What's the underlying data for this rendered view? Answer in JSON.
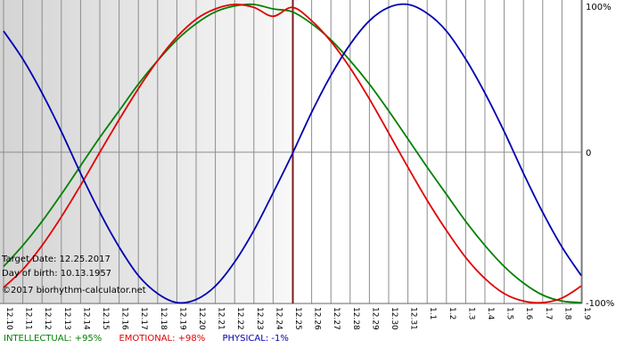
{
  "chart_data": {
    "type": "line",
    "x": [
      "12.10",
      "12.11",
      "12.12",
      "12.13",
      "12.14",
      "12.15",
      "12.16",
      "12.17",
      "12.18",
      "12.19",
      "12.20",
      "12.21",
      "12.22",
      "12.23",
      "12.24",
      "12.25",
      "12.26",
      "12.27",
      "12.28",
      "12.29",
      "12.30",
      "12.31",
      "1.1",
      "1.2",
      "1.3",
      "1.4",
      "1.5",
      "1.6",
      "1.7",
      "1.8",
      "1.9"
    ],
    "y_ticks": [
      "100%",
      "0",
      "-100%"
    ],
    "ylim": [
      -100,
      100
    ],
    "target_x": "12.25",
    "series": [
      {
        "name": "INTELLECTUAL",
        "color": "#008000",
        "values": [
          -76,
          -62,
          -46,
          -28,
          -9,
          10,
          28,
          46,
          62,
          76,
          87,
          95,
          99,
          100,
          97,
          95,
          87,
          76,
          62,
          46,
          28,
          9,
          -10,
          -28,
          -46,
          -62,
          -76,
          -87,
          -95,
          -99,
          -100
        ]
      },
      {
        "name": "EMOTIONAL",
        "color": "#e00000",
        "values": [
          -90,
          -78,
          -62,
          -43,
          -22,
          0,
          22,
          43,
          62,
          78,
          90,
          97,
          100,
          98,
          92,
          98,
          89,
          75,
          57,
          36,
          13,
          -10,
          -32,
          -52,
          -70,
          -84,
          -94,
          -99,
          -100,
          -97,
          -89
        ]
      },
      {
        "name": "PHYSICAL",
        "color": "#0000b0",
        "values": [
          82,
          63,
          40,
          14,
          -14,
          -40,
          -63,
          -82,
          -94,
          -100,
          -98,
          -89,
          -73,
          -52,
          -27,
          -1,
          27,
          52,
          73,
          89,
          98,
          100,
          94,
          82,
          63,
          40,
          14,
          -14,
          -40,
          -63,
          -82
        ]
      }
    ]
  },
  "info": {
    "target_date": "Target Date: 12.25.2017",
    "birth_date": "Day of birth: 10.13.1957",
    "copyright": "©2017 biorhythm-calculator.net"
  },
  "legend": {
    "intellectual": "INTELLECTUAL: +95%",
    "emotional": "EMOTIONAL: +98%",
    "physical": "PHYSICAL: -1%"
  }
}
